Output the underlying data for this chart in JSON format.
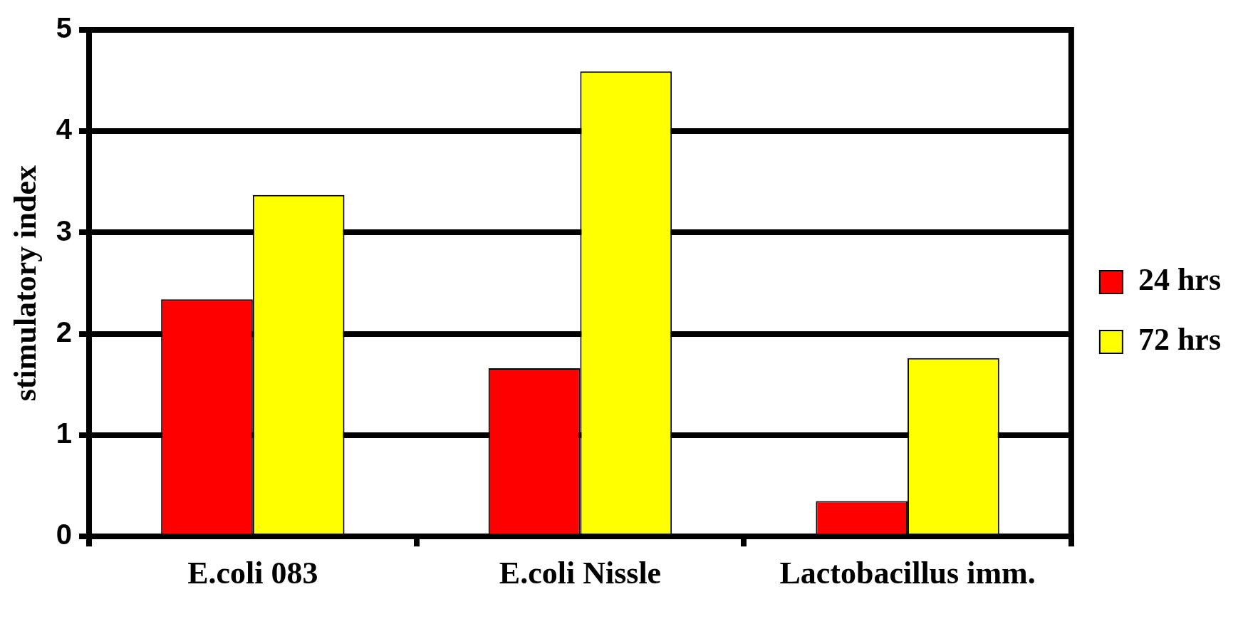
{
  "chart_data": {
    "type": "bar",
    "ylabel": "stimulatory index",
    "categories": [
      "E.coli 083",
      "E.coli Nissle",
      "Lactobacillus imm."
    ],
    "series": [
      {
        "name": "24 hrs",
        "color": "#ff0000",
        "values": [
          2.34,
          1.66,
          0.35
        ]
      },
      {
        "name": "72 hrs",
        "color": "#ffff00",
        "values": [
          3.37,
          4.59,
          1.76
        ]
      }
    ],
    "ylim": [
      0,
      5
    ],
    "yticks": [
      0,
      1,
      2,
      3,
      4,
      5
    ],
    "grid": "y",
    "legend": "right"
  }
}
